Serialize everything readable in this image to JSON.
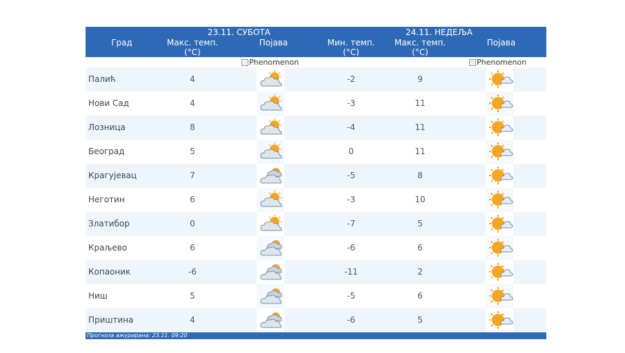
{
  "header": {
    "day1_date": "23.11. СУБОТА",
    "day2_date": "24.11. НЕДЕЉА",
    "col_city": "Град",
    "col_max_temp_1a": "Макс. темп.",
    "col_max_temp_1b": "(°C)",
    "col_phenom_1": "Појава",
    "col_min_temp_2a": "Мин. темп.",
    "col_min_temp_2b": "(°C)",
    "col_max_temp_2a": "Макс. темп.",
    "col_max_temp_2b": "(°C)",
    "col_phenom_2": "Појава"
  },
  "phenomenon_alt": "Phenomenon",
  "rows": [
    {
      "city": "Палић",
      "max1": "4",
      "icon1": "cloud-sun-icon",
      "min2": "-2",
      "max2": "9",
      "icon2": "sun-cloud-icon"
    },
    {
      "city": "Нови Сад",
      "max1": "4",
      "icon1": "cloud-sun-icon",
      "min2": "-3",
      "max2": "11",
      "icon2": "sun-cloud-icon"
    },
    {
      "city": "Лозница",
      "max1": "8",
      "icon1": "cloud-sun-icon",
      "min2": "-4",
      "max2": "11",
      "icon2": "sun-cloud-icon"
    },
    {
      "city": "Београд",
      "max1": "5",
      "icon1": "cloud-sun-icon",
      "min2": "0",
      "max2": "11",
      "icon2": "sun-cloud-icon"
    },
    {
      "city": "Крагујевац",
      "max1": "7",
      "icon1": "cloudy-icon",
      "min2": "-5",
      "max2": "8",
      "icon2": "sun-cloud-icon"
    },
    {
      "city": "Неготин",
      "max1": "6",
      "icon1": "cloud-sun-icon",
      "min2": "-3",
      "max2": "10",
      "icon2": "sun-cloud-icon"
    },
    {
      "city": "Златибор",
      "max1": "0",
      "icon1": "cloud-sun-icon",
      "min2": "-7",
      "max2": "5",
      "icon2": "sun-cloud-icon"
    },
    {
      "city": "Краљево",
      "max1": "6",
      "icon1": "cloudy-icon",
      "min2": "-6",
      "max2": "6",
      "icon2": "sun-cloud-icon"
    },
    {
      "city": "Копаоник",
      "max1": "-6",
      "icon1": "cloudy-icon",
      "min2": "-11",
      "max2": "2",
      "icon2": "sun-cloud-icon"
    },
    {
      "city": "Ниш",
      "max1": "5",
      "icon1": "cloudy-icon",
      "min2": "-5",
      "max2": "6",
      "icon2": "sun-cloud-icon"
    },
    {
      "city": "Приштина",
      "max1": "4",
      "icon1": "cloudy-icon",
      "min2": "-6",
      "max2": "5",
      "icon2": "sun-cloud-icon"
    }
  ],
  "footer": "Прогноза ажурирана:  23.11.  09:20",
  "colors": {
    "header_bg": "#2e69b5",
    "row_alt_bg": "#eef6fb",
    "sun": "#f6a623",
    "cloud": "#dde6ef"
  }
}
